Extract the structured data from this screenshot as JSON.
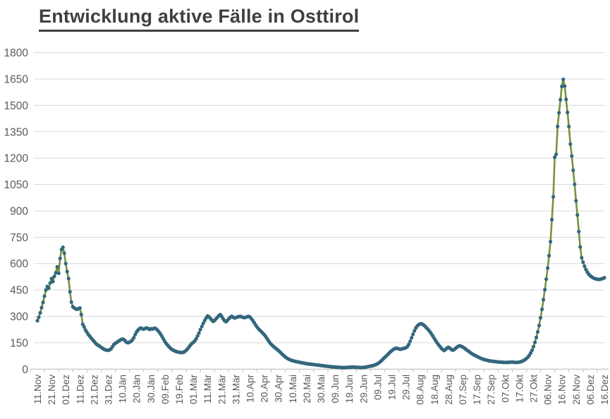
{
  "page": {
    "title": "Entwicklung aktive Fälle in Osttirol"
  },
  "chart_data": {
    "type": "line",
    "title": "Entwicklung aktive Fälle in Osttirol",
    "xlabel": "",
    "ylabel": "",
    "ylim": [
      0,
      1800
    ],
    "y_ticks": [
      0,
      150,
      300,
      450,
      600,
      750,
      900,
      1050,
      1200,
      1350,
      1500,
      1650,
      1800
    ],
    "x_tick_step_days": 10,
    "grid": true,
    "legend_position": "none",
    "x_tick_labels": [
      "11.Nov",
      "21.Nov",
      "01.Dez",
      "11.Dez",
      "21.Dez",
      "31.Dez",
      "10.Jän",
      "20.Jän",
      "30.Jän",
      "09.Feb",
      "19.Feb",
      "01.Mär",
      "11.Mär",
      "21.Mär",
      "31.Mär",
      "10.Apr",
      "20.Apr",
      "30.Apr",
      "10.Mai",
      "20.Mai",
      "30.Mai",
      "09.Jun",
      "19.Jun",
      "29.Jun",
      "09.Jul",
      "19.Jul",
      "29.Jul",
      "08.Aug",
      "18.Aug",
      "28.Aug",
      "07.Sep",
      "17.Sep",
      "27.Sep",
      "07.Okt",
      "17.Okt",
      "27.Okt",
      "06.Nov",
      "16.Nov",
      "26.Nov",
      "06.Dez",
      "16.Dez"
    ],
    "series": [
      {
        "name": "aktive Fälle",
        "values": [
          275,
          295,
          320,
          350,
          380,
          415,
          450,
          470,
          460,
          490,
          515,
          498,
          528,
          548,
          582,
          545,
          630,
          680,
          693,
          660,
          600,
          555,
          515,
          440,
          381,
          355,
          348,
          343,
          340,
          344,
          348,
          310,
          255,
          240,
          222,
          210,
          196,
          187,
          176,
          167,
          158,
          148,
          140,
          135,
          130,
          124,
          118,
          113,
          110,
          108,
          107,
          110,
          116,
          128,
          140,
          147,
          152,
          158,
          163,
          168,
          171,
          168,
          160,
          152,
          150,
          153,
          158,
          166,
          178,
          196,
          212,
          222,
          230,
          234,
          230,
          227,
          231,
          235,
          231,
          226,
          230,
          228,
          231,
          233,
          228,
          220,
          210,
          198,
          185,
          170,
          156,
          145,
          135,
          126,
          118,
          112,
          107,
          103,
          100,
          98,
          96,
          95,
          94,
          96,
          100,
          107,
          116,
          126,
          137,
          146,
          152,
          160,
          172,
          188,
          205,
          225,
          243,
          260,
          276,
          290,
          302,
          298,
          289,
          280,
          272,
          277,
          286,
          295,
          304,
          310,
          300,
          287,
          276,
          270,
          276,
          286,
          295,
          300,
          296,
          291,
          293,
          296,
          299,
          300,
          298,
          295,
          293,
          295,
          298,
          300,
          296,
          287,
          276,
          264,
          251,
          239,
          229,
          221,
          213,
          205,
          196,
          186,
          174,
          162,
          151,
          141,
          133,
          126,
          119,
          113,
          106,
          99,
          91,
          83,
          76,
          69,
          63,
          58,
          54,
          51,
          48,
          46,
          44,
          42,
          41,
          39,
          37,
          36,
          34,
          33,
          31,
          30,
          29,
          28,
          27,
          26,
          25,
          24,
          23,
          22,
          21,
          20,
          19,
          18,
          17,
          16,
          15,
          14,
          13,
          13,
          12,
          11,
          11,
          10,
          10,
          9,
          9,
          9,
          10,
          10,
          11,
          11,
          12,
          12,
          11,
          11,
          10,
          10,
          9,
          10,
          10,
          11,
          12,
          14,
          16,
          17,
          19,
          21,
          24,
          27,
          31,
          36,
          43,
          50,
          58,
          66,
          74,
          82,
          90,
          98,
          105,
          111,
          116,
          119,
          118,
          115,
          113,
          115,
          117,
          119,
          122,
          128,
          140,
          158,
          178,
          198,
          218,
          234,
          246,
          253,
          257,
          258,
          254,
          248,
          240,
          231,
          222,
          212,
          200,
          188,
          175,
          162,
          150,
          139,
          129,
          119,
          111,
          106,
          112,
          120,
          124,
          119,
          112,
          108,
          111,
          118,
          125,
          130,
          132,
          130,
          126,
          121,
          115,
          109,
          103,
          97,
          91,
          86,
          81,
          77,
          73,
          69,
          65,
          61,
          58,
          55,
          53,
          51,
          49,
          47,
          46,
          45,
          44,
          43,
          42,
          41,
          40,
          40,
          39,
          39,
          38,
          38,
          39,
          39,
          40,
          40,
          39,
          39,
          38,
          39,
          40,
          42,
          45,
          49,
          54,
          60,
          68,
          78,
          92,
          108,
          128,
          152,
          180,
          212,
          248,
          292,
          340,
          395,
          452,
          512,
          575,
          645,
          725,
          850,
          980,
          1205,
          1222,
          1380,
          1458,
          1532,
          1608,
          1648,
          1610,
          1534,
          1460,
          1380,
          1280,
          1212,
          1131,
          1051,
          957,
          876,
          782,
          695,
          634,
          608,
          585,
          566,
          551,
          540,
          531,
          525,
          520,
          516,
          513,
          511,
          510,
          511,
          513,
          516,
          520
        ]
      }
    ],
    "colors": {
      "line": "#76933c",
      "marker": "#33677d",
      "grid": "#d9d9d9",
      "axis": "#bfbfbf",
      "tick_label": "#595959",
      "title": "#3f3f3f"
    }
  }
}
